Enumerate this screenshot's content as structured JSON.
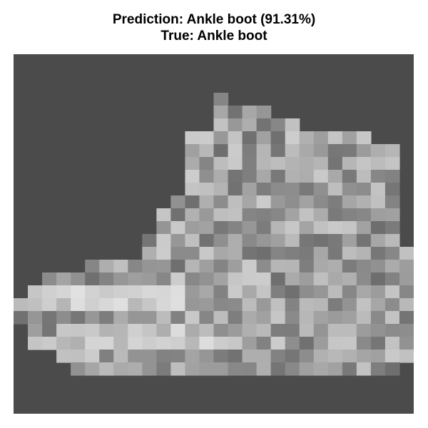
{
  "title": {
    "prediction_line": "Prediction: Ankle boot (91.31%)",
    "true_line": "True: Ankle boot"
  },
  "image": {
    "description_name": "fashion-item-ankle-boot",
    "background_color": "#4b4b4b",
    "grid_size": 28
  }
}
